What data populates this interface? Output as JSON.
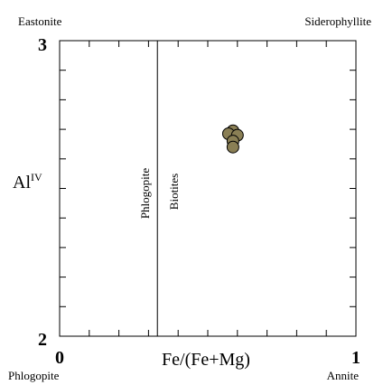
{
  "chart_data": {
    "type": "scatter",
    "title": "",
    "xlabel": "Fe/(Fe+Mg)",
    "ylabel": "Al",
    "ylabel_superscript": "IV",
    "xlim": [
      0,
      1
    ],
    "ylim": [
      2,
      3
    ],
    "x_tick_labels": [
      "0",
      "1"
    ],
    "y_tick_labels": [
      "2",
      "3"
    ],
    "grid": false,
    "legend": "none",
    "corner_labels": {
      "top_left": "Eastonite",
      "top_right": "Siderophyllite",
      "bottom_left": "Phlogopite",
      "bottom_right": "Annite"
    },
    "divider": {
      "x": 0.33,
      "left_label": "Phlogopite",
      "right_label": "Biotites"
    },
    "series": [
      {
        "marker_color": "#8a7f55",
        "points": [
          {
            "x": 0.585,
            "y": 2.695
          },
          {
            "x": 0.57,
            "y": 2.685
          },
          {
            "x": 0.6,
            "y": 2.68
          },
          {
            "x": 0.585,
            "y": 2.66
          },
          {
            "x": 0.585,
            "y": 2.64
          }
        ]
      }
    ]
  }
}
